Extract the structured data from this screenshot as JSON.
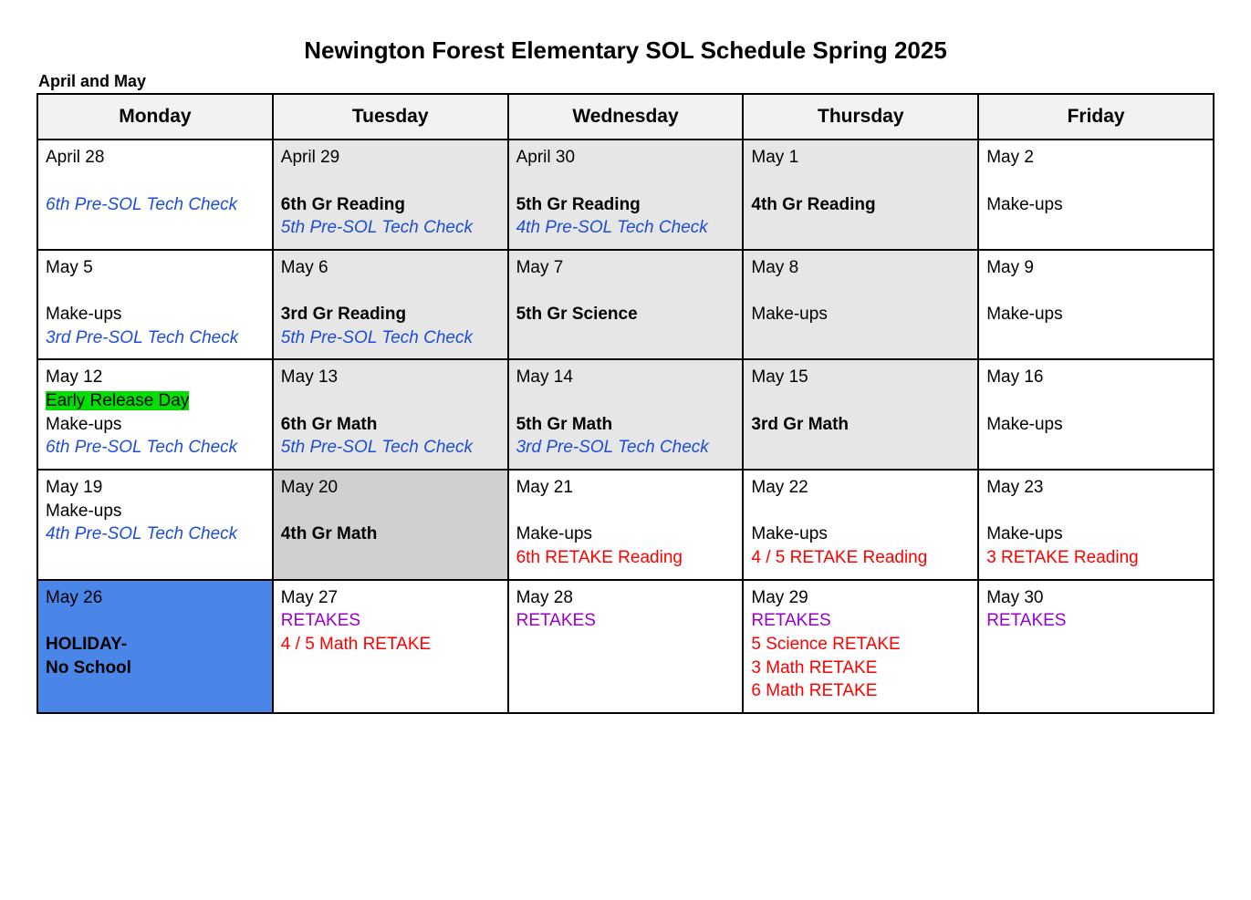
{
  "title": "Newington Forest Elementary SOL Schedule Spring 2025",
  "subtitle": "April and May",
  "colors": {
    "header_bg": "#f2f2f2",
    "grey1": "#e6e6e6",
    "grey2": "#d0d0d0",
    "blue_bg": "#4a86e8",
    "highlight_green": "#00e000",
    "text_blue": "#1e4ed8",
    "text_red": "#ff0000",
    "text_purple": "#9900cc",
    "border": "#000000"
  },
  "typography": {
    "font_family": "Arial",
    "title_fontsize": 26,
    "header_fontsize": 21,
    "cell_fontsize": 19
  },
  "headers": [
    "Monday",
    "Tuesday",
    "Wednesday",
    "Thursday",
    "Friday"
  ],
  "weeks": [
    {
      "cells": [
        {
          "date": "April 28",
          "bg": "white",
          "lines": [
            {
              "text": "",
              "spacer": true
            },
            {
              "text": "6th Pre-SOL Tech Check",
              "style": "blue-italic"
            }
          ]
        },
        {
          "date": "April 29",
          "bg": "grey1",
          "lines": [
            {
              "text": "",
              "spacer": true
            },
            {
              "text": "6th Gr Reading",
              "style": "bold"
            },
            {
              "text": "5th Pre-SOL Tech Check",
              "style": "blue-italic"
            }
          ]
        },
        {
          "date": "April 30",
          "bg": "grey1",
          "lines": [
            {
              "text": "",
              "spacer": true
            },
            {
              "text": "5th Gr Reading",
              "style": "bold"
            },
            {
              "text": "4th Pre-SOL Tech Check",
              "style": "blue-italic"
            }
          ]
        },
        {
          "date": "May 1",
          "bg": "grey1",
          "lines": [
            {
              "text": "",
              "spacer": true
            },
            {
              "text": "4th Gr Reading",
              "style": "bold"
            }
          ]
        },
        {
          "date": "May 2",
          "bg": "white",
          "lines": [
            {
              "text": "",
              "spacer": true
            },
            {
              "text": "Make-ups"
            }
          ]
        }
      ]
    },
    {
      "cells": [
        {
          "date": "May 5",
          "bg": "white",
          "lines": [
            {
              "text": "",
              "spacer": true
            },
            {
              "text": "Make-ups"
            },
            {
              "text": "3rd Pre-SOL Tech Check",
              "style": "blue-italic"
            }
          ]
        },
        {
          "date": "May 6",
          "bg": "grey1",
          "lines": [
            {
              "text": "",
              "spacer": true
            },
            {
              "text": "3rd Gr Reading",
              "style": "bold"
            },
            {
              "text": "5th Pre-SOL Tech Check",
              "style": "blue-italic"
            }
          ]
        },
        {
          "date": "May 7",
          "bg": "grey1",
          "lines": [
            {
              "text": "",
              "spacer": true
            },
            {
              "text": "5th Gr Science",
              "style": "bold"
            }
          ]
        },
        {
          "date": "May 8",
          "bg": "grey1",
          "lines": [
            {
              "text": "",
              "spacer": true
            },
            {
              "text": "Make-ups"
            }
          ]
        },
        {
          "date": "May 9",
          "bg": "white",
          "lines": [
            {
              "text": "",
              "spacer": true
            },
            {
              "text": "Make-ups"
            }
          ]
        }
      ]
    },
    {
      "cells": [
        {
          "date": "May 12",
          "bg": "white",
          "lines": [
            {
              "text": "Early Release Day",
              "style": "hl-green"
            },
            {
              "text": "Make-ups"
            },
            {
              "text": "6th Pre-SOL Tech Check",
              "style": "blue-italic"
            }
          ]
        },
        {
          "date": "May 13",
          "bg": "grey1",
          "lines": [
            {
              "text": "",
              "spacer": true
            },
            {
              "text": "6th Gr Math",
              "style": "bold"
            },
            {
              "text": "5th Pre-SOL Tech Check",
              "style": "blue-italic"
            }
          ]
        },
        {
          "date": "May 14",
          "bg": "grey1",
          "lines": [
            {
              "text": "",
              "spacer": true
            },
            {
              "text": "5th Gr Math",
              "style": "bold"
            },
            {
              "text": "3rd Pre-SOL Tech Check",
              "style": "blue-italic"
            }
          ]
        },
        {
          "date": "May 15",
          "bg": "grey1",
          "lines": [
            {
              "text": "",
              "spacer": true
            },
            {
              "text": "3rd Gr Math",
              "style": "bold"
            }
          ]
        },
        {
          "date": "May 16",
          "bg": "white",
          "lines": [
            {
              "text": "",
              "spacer": true
            },
            {
              "text": "Make-ups"
            }
          ]
        }
      ]
    },
    {
      "cells": [
        {
          "date": "May 19",
          "bg": "white",
          "lines": [
            {
              "text": "Make-ups"
            },
            {
              "text": "4th Pre-SOL Tech Check",
              "style": "blue-italic"
            }
          ]
        },
        {
          "date": "May 20",
          "bg": "grey2",
          "lines": [
            {
              "text": "",
              "spacer": true
            },
            {
              "text": "4th Gr Math",
              "style": "bold"
            }
          ]
        },
        {
          "date": "May 21",
          "bg": "white",
          "lines": [
            {
              "text": "",
              "spacer": true
            },
            {
              "text": "Make-ups"
            },
            {
              "text": "6th RETAKE Reading",
              "style": "red"
            }
          ]
        },
        {
          "date": "May 22",
          "bg": "white",
          "lines": [
            {
              "text": "",
              "spacer": true
            },
            {
              "text": "Make-ups"
            },
            {
              "text": "4 / 5 RETAKE Reading",
              "style": "red"
            }
          ]
        },
        {
          "date": "May 23",
          "bg": "white",
          "lines": [
            {
              "text": "",
              "spacer": true
            },
            {
              "text": "Make-ups"
            },
            {
              "text": "3 RETAKE Reading",
              "style": "red"
            }
          ]
        }
      ]
    },
    {
      "cells": [
        {
          "date": "May 26",
          "bg": "blue",
          "lines": [
            {
              "text": "",
              "spacer": true
            },
            {
              "text": "HOLIDAY-",
              "style": "bold"
            },
            {
              "text": "No School",
              "style": "bold"
            }
          ]
        },
        {
          "date": "May 27",
          "bg": "white",
          "lines": [
            {
              "text": "RETAKES",
              "style": "purple"
            },
            {
              "text": "4 / 5 Math RETAKE",
              "style": "red"
            }
          ]
        },
        {
          "date": "May 28",
          "bg": "white",
          "lines": [
            {
              "text": "RETAKES",
              "style": "purple"
            }
          ]
        },
        {
          "date": "May 29",
          "bg": "white",
          "lines": [
            {
              "text": "RETAKES",
              "style": "purple"
            },
            {
              "text": "5 Science RETAKE",
              "style": "red"
            },
            {
              "text": "3 Math RETAKE",
              "style": "red"
            },
            {
              "text": "6 Math RETAKE",
              "style": "red"
            }
          ]
        },
        {
          "date": "May 30",
          "bg": "white",
          "lines": [
            {
              "text": "RETAKES",
              "style": "purple"
            }
          ]
        }
      ]
    }
  ]
}
